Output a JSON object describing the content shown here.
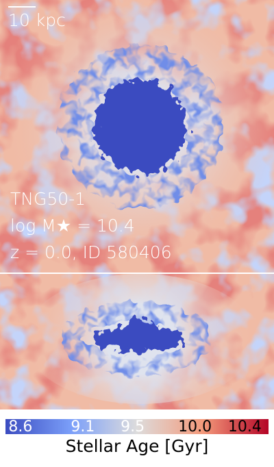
{
  "scale_bar": {
    "label": "10 kpc"
  },
  "annotations": [
    "TNG50-1",
    "log M★ = 10.4",
    "z = 0.0, ID 580406"
  ],
  "colorbar": {
    "label": "Stellar Age [Gyr]",
    "lim": [
      8.48,
      10.59
    ],
    "ticks": [
      8.6,
      9.1,
      9.5,
      {
        "value": 10,
        "label": "10.0"
      },
      10.4
    ]
  }
}
